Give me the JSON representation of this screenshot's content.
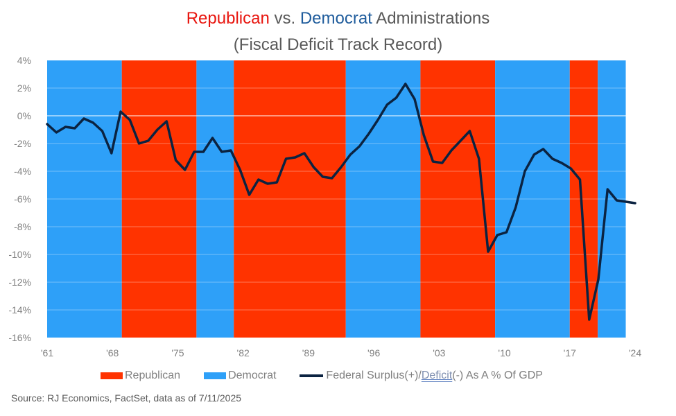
{
  "title": {
    "part1": "Republican",
    "part2": " vs. ",
    "part3": "Democrat",
    "part4": " Administrations",
    "line2": "(Fiscal Deficit Track Record)"
  },
  "source": "Source: RJ Economics, FactSet, data as of 7/11/2025",
  "legend": {
    "republican": "Republican",
    "democrat": "Democrat",
    "line_prefix": "Federal Surplus(+)/",
    "line_deficit": "Deficit",
    "line_suffix": "(-) As A % Of GDP"
  },
  "colors": {
    "republican": "#ff3300",
    "democrat": "#2ea0f8",
    "line": "#0b2341",
    "grid": "#ffffff",
    "axis_text": "#808080"
  },
  "chart_data": {
    "type": "line",
    "series": [
      {
        "name": "Federal Surplus(+)/Deficit(-) As A % Of GDP",
        "x": [
          1961,
          1962,
          1963,
          1964,
          1965,
          1966,
          1967,
          1968,
          1969,
          1970,
          1971,
          1972,
          1973,
          1974,
          1975,
          1976,
          1977,
          1978,
          1979,
          1980,
          1981,
          1982,
          1983,
          1984,
          1985,
          1986,
          1987,
          1988,
          1989,
          1990,
          1991,
          1992,
          1993,
          1994,
          1995,
          1996,
          1997,
          1998,
          1999,
          2000,
          2001,
          2002,
          2003,
          2004,
          2005,
          2006,
          2007,
          2008,
          2009,
          2010,
          2011,
          2012,
          2013,
          2014,
          2015,
          2016,
          2017,
          2018,
          2019,
          2020,
          2021,
          2022,
          2023,
          2024,
          2025
        ],
        "values": [
          -0.6,
          -1.2,
          -0.8,
          -0.9,
          -0.2,
          -0.5,
          -1.1,
          -2.7,
          0.3,
          -0.3,
          -2.0,
          -1.8,
          -1.0,
          -0.4,
          -3.2,
          -3.9,
          -2.6,
          -2.6,
          -1.6,
          -2.6,
          -2.5,
          -3.9,
          -5.7,
          -4.6,
          -4.9,
          -4.8,
          -3.1,
          -3.0,
          -2.7,
          -3.7,
          -4.4,
          -4.5,
          -3.7,
          -2.8,
          -2.2,
          -1.3,
          -0.3,
          0.8,
          1.3,
          2.3,
          1.2,
          -1.4,
          -3.3,
          -3.4,
          -2.5,
          -1.8,
          -1.1,
          -3.1,
          -9.8,
          -8.6,
          -8.4,
          -6.6,
          -4.0,
          -2.8,
          -2.4,
          -3.1,
          -3.4,
          -3.8,
          -4.6,
          -14.7,
          -11.8,
          -5.3,
          -6.1,
          -6.2,
          -6.3
        ]
      }
    ],
    "administrations": [
      {
        "party": "Democrat",
        "start": 1961.0,
        "end": 1969.0
      },
      {
        "party": "Republican",
        "start": 1969.0,
        "end": 1977.0
      },
      {
        "party": "Democrat",
        "start": 1977.0,
        "end": 1981.0
      },
      {
        "party": "Republican",
        "start": 1981.0,
        "end": 1993.0
      },
      {
        "party": "Democrat",
        "start": 1993.0,
        "end": 2001.0
      },
      {
        "party": "Republican",
        "start": 2001.0,
        "end": 2009.0
      },
      {
        "party": "Democrat",
        "start": 2009.0,
        "end": 2017.0
      },
      {
        "party": "Republican",
        "start": 2017.0,
        "end": 2020.0
      },
      {
        "party": "Democrat",
        "start": 2020.0,
        "end": 2023.0
      }
    ],
    "xlim": [
      1961,
      2024
    ],
    "ylim": [
      -16,
      4
    ],
    "yticks": [
      4,
      2,
      0,
      -2,
      -4,
      -6,
      -8,
      -10,
      -12,
      -14,
      -16
    ],
    "ytick_labels": [
      "4%",
      "2%",
      "0%",
      "-2%",
      "-4%",
      "-6%",
      "-8%",
      "-10%",
      "-12%",
      "-14%",
      "-16%"
    ],
    "xticks": [
      1961,
      1968,
      1975,
      1982,
      1989,
      1996,
      2003,
      2010,
      2017,
      2024
    ],
    "xtick_labels": [
      "'61",
      "'68",
      "'75",
      "'82",
      "'89",
      "'96",
      "'03",
      "'10",
      "'17",
      "'24"
    ],
    "grid": true,
    "legend_position": "bottom"
  }
}
